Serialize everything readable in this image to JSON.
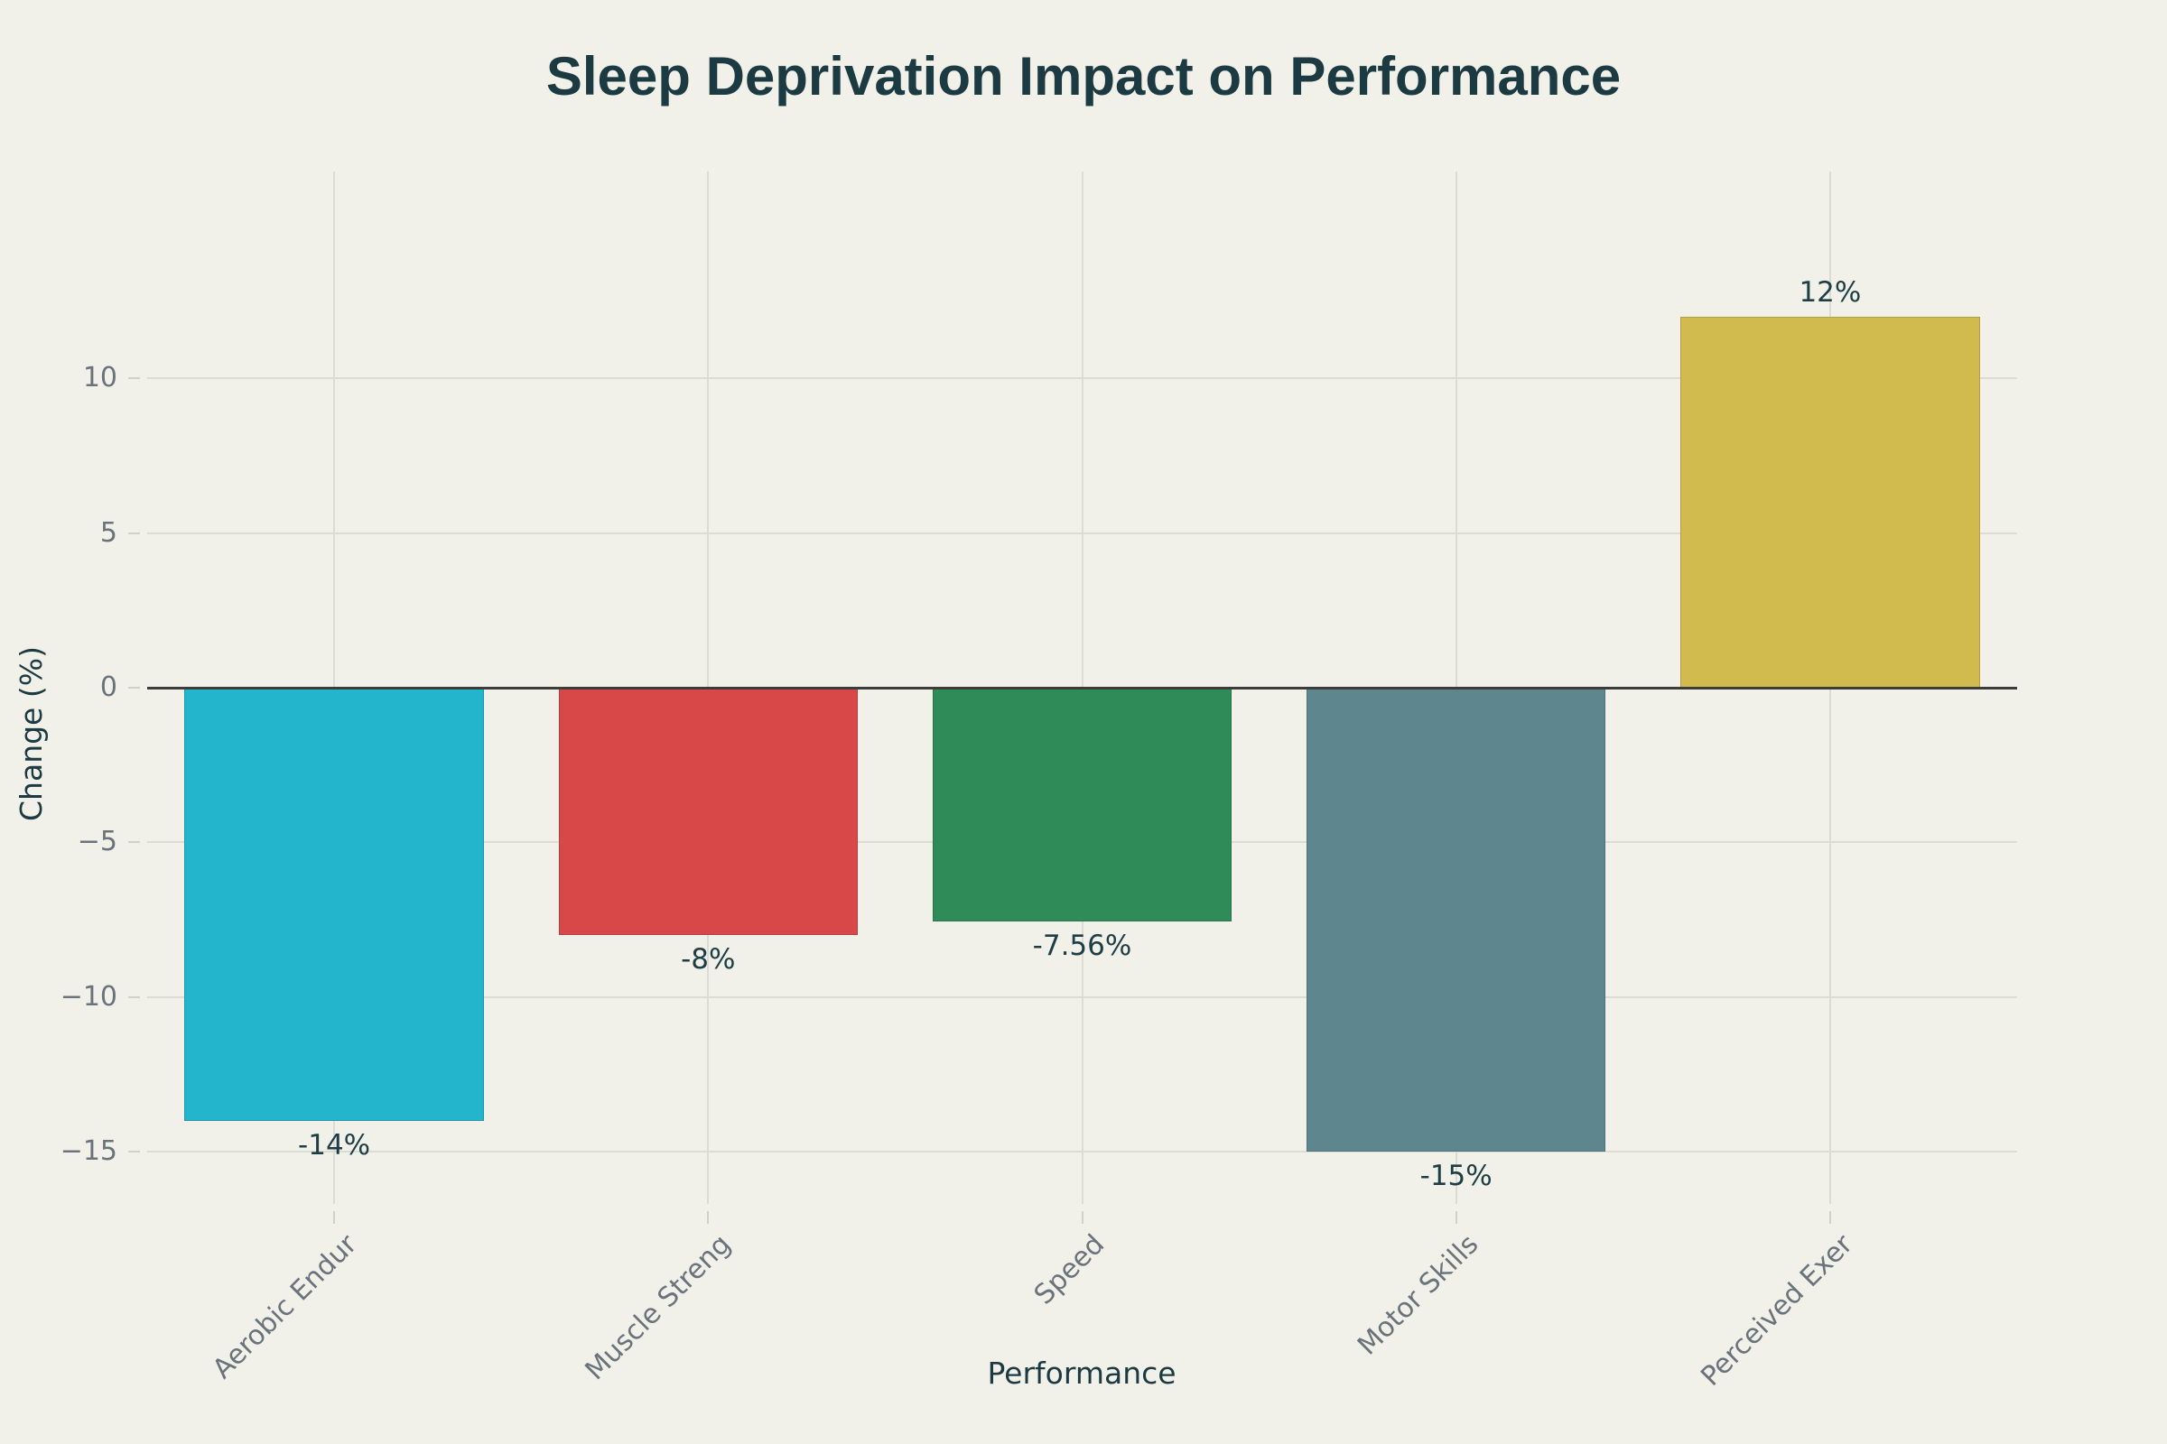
{
  "chart_data": {
    "type": "bar",
    "title": "Sleep Deprivation Impact on Performance",
    "xlabel": "Performance",
    "ylabel": "Change (%)",
    "categories": [
      "Aerobic Endur",
      "Muscle Streng",
      "Speed",
      "Motor Skills",
      "Perceived Exer"
    ],
    "values": [
      -14,
      -8,
      -7.56,
      -15,
      12
    ],
    "value_labels": [
      "-14%",
      "-8%",
      "-7.56%",
      "-15%",
      "12%"
    ],
    "bar_colors": [
      "#22b5cc",
      "#d94848",
      "#2f8b57",
      "#5d868f",
      "#d2bb4e"
    ],
    "yticks": [
      {
        "value": 10,
        "label": "10"
      },
      {
        "value": 5,
        "label": "5"
      },
      {
        "value": 0,
        "label": "0"
      },
      {
        "value": -5,
        "label": "−5"
      },
      {
        "value": -10,
        "label": "−10"
      },
      {
        "value": -15,
        "label": "−15"
      }
    ],
    "ylim": [
      -16.7,
      16.7
    ],
    "grid": true,
    "legend": false,
    "bar_gap_fraction": 0.2
  },
  "colors": {
    "background": "#f1f1ea",
    "title_text": "#1b3a41",
    "axis_title_text": "#1b3a41",
    "tick_text": "#6a737b",
    "value_label_text": "#1e3e45",
    "gridline": "#dddcd4",
    "tick_mark": "#d2d1c9",
    "zero_line": "#3c3c3a"
  }
}
